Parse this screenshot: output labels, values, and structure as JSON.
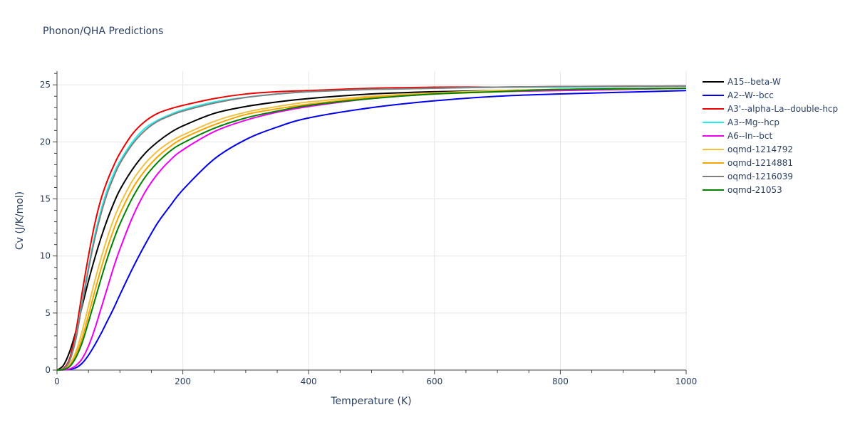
{
  "chart_data": {
    "type": "line",
    "title": "Phonon/QHA Predictions",
    "xlabel": "Temperature (K)",
    "ylabel": "Cv (J/K/mol)",
    "xlim": [
      0,
      1000
    ],
    "ylim": [
      0,
      26.2
    ],
    "xticks": [
      0,
      200,
      400,
      600,
      800,
      1000
    ],
    "yticks": [
      0,
      5,
      10,
      15,
      20,
      25
    ],
    "grid": true,
    "legend_position": "right",
    "x": [
      0,
      10,
      20,
      30,
      40,
      50,
      60,
      70,
      80,
      90,
      100,
      120,
      140,
      160,
      180,
      200,
      250,
      300,
      350,
      400,
      500,
      600,
      700,
      800,
      1000
    ],
    "series": [
      {
        "name": "A15--beta-W",
        "color": "#000000",
        "values": [
          0,
          0.4,
          1.6,
          3.4,
          5.6,
          7.8,
          9.8,
          11.6,
          13.2,
          14.6,
          15.8,
          17.6,
          19.0,
          20.0,
          20.8,
          21.4,
          22.5,
          23.1,
          23.5,
          23.8,
          24.2,
          24.4,
          24.5,
          24.6,
          24.7
        ]
      },
      {
        "name": "A2--W--bcc",
        "color": "#0000ee",
        "values": [
          0,
          0.02,
          0.06,
          0.2,
          0.6,
          1.3,
          2.2,
          3.2,
          4.3,
          5.4,
          6.6,
          8.9,
          11.0,
          12.9,
          14.4,
          15.8,
          18.5,
          20.2,
          21.3,
          22.1,
          23.0,
          23.6,
          24.0,
          24.2,
          24.5
        ]
      },
      {
        "name": "A3'--alpha-La--double-hcp",
        "color": "#ee0000",
        "values": [
          0,
          0.15,
          1.0,
          3.4,
          6.8,
          10.0,
          12.8,
          15.0,
          16.6,
          17.9,
          19.0,
          20.7,
          21.8,
          22.5,
          22.9,
          23.2,
          23.8,
          24.2,
          24.4,
          24.5,
          24.7,
          24.8,
          24.8,
          24.85,
          24.9
        ]
      },
      {
        "name": "A3--Mg--hcp",
        "color": "#22eeee",
        "values": [
          0,
          0.1,
          0.8,
          2.8,
          6.0,
          9.0,
          11.8,
          14.0,
          15.8,
          17.2,
          18.3,
          20.0,
          21.2,
          21.9,
          22.4,
          22.8,
          23.5,
          23.9,
          24.2,
          24.4,
          24.6,
          24.7,
          24.8,
          24.8,
          24.9
        ]
      },
      {
        "name": "A6--In--bct",
        "color": "#ee00ee",
        "values": [
          0,
          0.02,
          0.1,
          0.4,
          1.0,
          2.1,
          3.6,
          5.4,
          7.2,
          9.0,
          10.6,
          13.4,
          15.6,
          17.2,
          18.4,
          19.3,
          20.9,
          21.9,
          22.6,
          23.1,
          23.8,
          24.2,
          24.4,
          24.5,
          24.7
        ]
      },
      {
        "name": "oqmd-1214792",
        "color": "#f0c040",
        "values": [
          0,
          0.1,
          0.5,
          1.6,
          3.4,
          5.6,
          7.8,
          9.8,
          11.6,
          13.2,
          14.5,
          16.6,
          18.1,
          19.2,
          20.0,
          20.6,
          21.8,
          22.6,
          23.1,
          23.5,
          24.0,
          24.3,
          24.5,
          24.6,
          24.7
        ]
      },
      {
        "name": "oqmd-1214881",
        "color": "#f5a500",
        "values": [
          0,
          0.06,
          0.35,
          1.3,
          2.8,
          4.8,
          6.9,
          8.9,
          10.7,
          12.3,
          13.7,
          15.9,
          17.5,
          18.7,
          19.6,
          20.3,
          21.5,
          22.4,
          22.9,
          23.3,
          23.9,
          24.2,
          24.4,
          24.6,
          24.7
        ]
      },
      {
        "name": "oqmd-1216039",
        "color": "#808080",
        "values": [
          0,
          0.1,
          0.8,
          2.7,
          5.8,
          8.8,
          11.5,
          13.7,
          15.5,
          16.9,
          18.1,
          19.8,
          21.0,
          21.8,
          22.3,
          22.7,
          23.4,
          23.9,
          24.2,
          24.4,
          24.6,
          24.7,
          24.8,
          24.85,
          24.9
        ]
      },
      {
        "name": "oqmd-21053",
        "color": "#008000",
        "values": [
          0,
          0.05,
          0.3,
          1.1,
          2.4,
          4.2,
          6.1,
          8.0,
          9.8,
          11.4,
          12.8,
          15.1,
          16.9,
          18.2,
          19.2,
          19.9,
          21.2,
          22.1,
          22.7,
          23.2,
          23.8,
          24.2,
          24.4,
          24.6,
          24.7
        ]
      }
    ]
  }
}
